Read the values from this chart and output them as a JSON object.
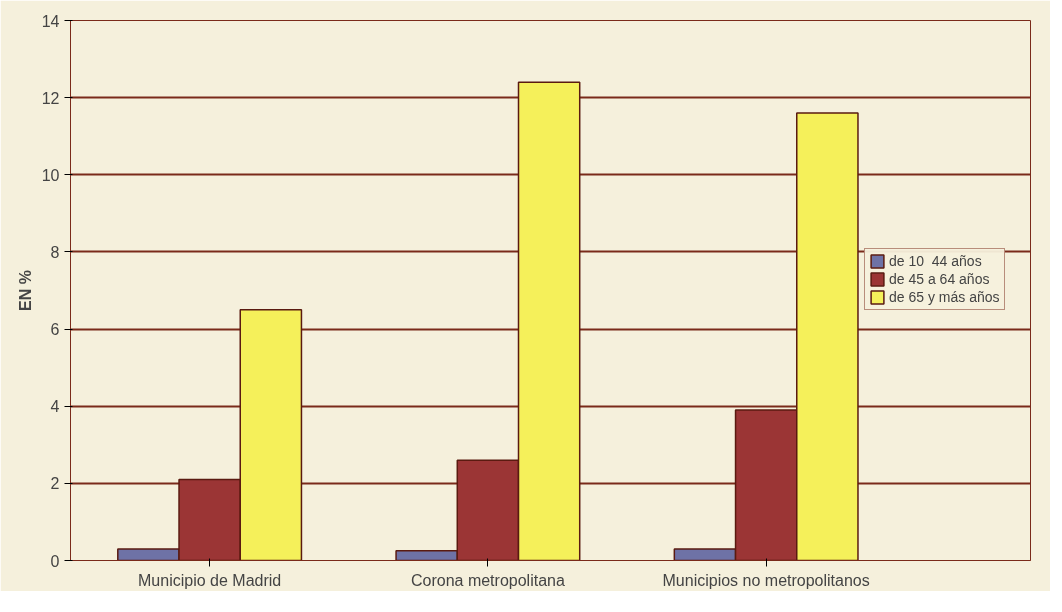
{
  "chart_data": {
    "type": "bar",
    "ylabel": "EN %",
    "categories": [
      "Municipio de Madrid",
      "Corona metropolitana",
      "Municipios no metropolitanos"
    ],
    "series": [
      {
        "name": "de 10  44 años",
        "color": "#6e72a6",
        "values": [
          0.3,
          0.25,
          0.3
        ]
      },
      {
        "name": "de 45 a 64 años",
        "color": "#9b3535",
        "values": [
          2.1,
          2.6,
          3.9
        ]
      },
      {
        "name": "de 65 y más años",
        "color": "#f5f05a",
        "values": [
          6.5,
          12.4,
          11.6
        ]
      }
    ],
    "ylim": [
      0,
      14
    ],
    "yticks": [
      0,
      2,
      4,
      6,
      8,
      10,
      12,
      14
    ],
    "grid": "y",
    "legend": "right"
  }
}
